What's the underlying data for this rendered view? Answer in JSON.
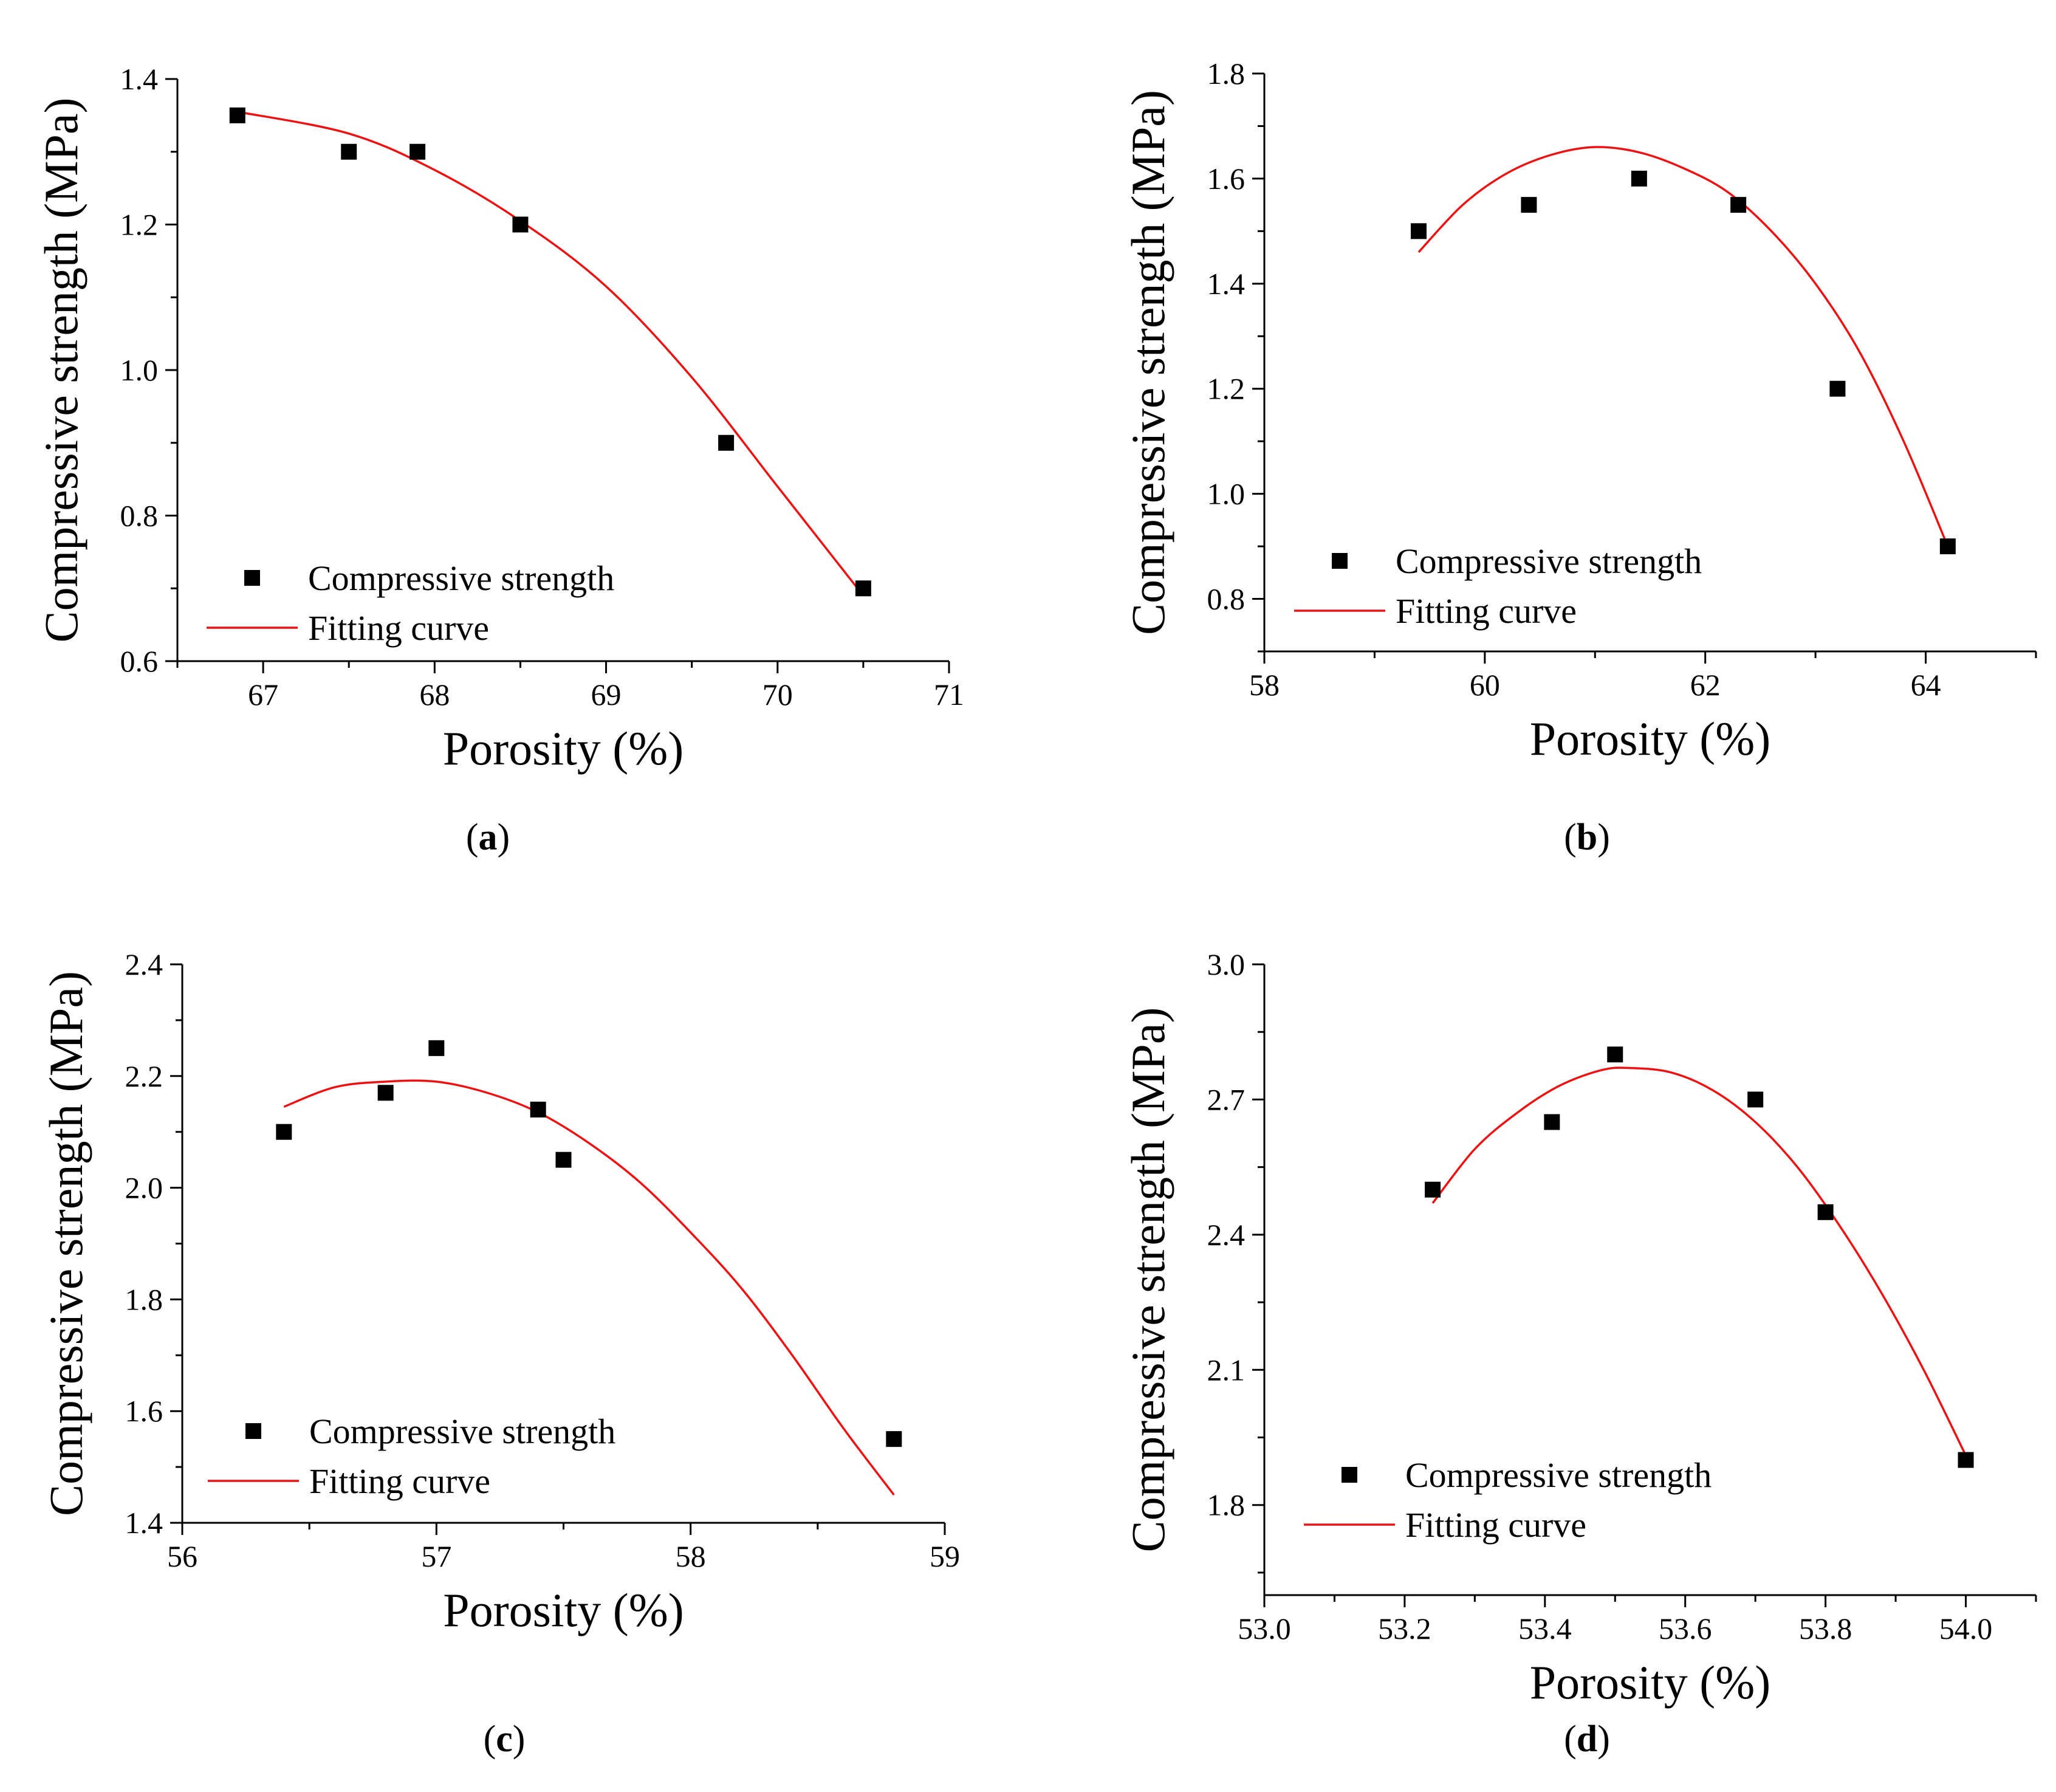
{
  "colors": {
    "points": "#000000",
    "fit": "#ee1111",
    "background": "#ffffff"
  },
  "chart_data": [
    {
      "panel": "a",
      "panel_label": "a",
      "type": "scatter",
      "xlabel": "Porosity (%)",
      "ylabel": "Compressive strength (MPa)",
      "xlim": [
        66.5,
        71
      ],
      "ylim": [
        0.6,
        1.4
      ],
      "xticks": [
        67,
        68,
        69,
        70,
        71
      ],
      "yticks": [
        0.6,
        0.8,
        1.0,
        1.2,
        1.4
      ],
      "x_tick_labels": [
        "67",
        "68",
        "69",
        "70",
        "71"
      ],
      "y_tick_labels": [
        "0.6",
        "0.8",
        "1.0",
        "1.2",
        "1.4"
      ],
      "legend": {
        "position": "bottom-left",
        "points_label": "Compressive strength",
        "fit_label": "Fitting curve"
      },
      "series": [
        {
          "name": "Compressive strength",
          "kind": "points",
          "x": [
            66.85,
            67.5,
            67.9,
            68.5,
            69.7,
            70.5
          ],
          "y": [
            1.35,
            1.3,
            1.3,
            1.2,
            0.9,
            0.7
          ]
        },
        {
          "name": "Fitting curve",
          "kind": "line",
          "x": [
            66.85,
            67.5,
            68.0,
            68.5,
            69.0,
            69.5,
            70.0,
            70.5
          ],
          "y": [
            1.355,
            1.325,
            1.275,
            1.205,
            1.115,
            0.99,
            0.84,
            0.69
          ]
        }
      ]
    },
    {
      "panel": "b",
      "panel_label": "b",
      "type": "scatter",
      "xlabel": "Porosity (%)",
      "ylabel": "Compressive strength (MPa)",
      "xlim": [
        58,
        65
      ],
      "ylim": [
        0.7,
        1.8
      ],
      "xticks": [
        58,
        60,
        62,
        64
      ],
      "yticks": [
        0.8,
        1.0,
        1.2,
        1.4,
        1.6,
        1.8
      ],
      "x_tick_labels": [
        "58",
        "60",
        "62",
        "64"
      ],
      "y_tick_labels": [
        "0.8",
        "1.0",
        "1.2",
        "1.4",
        "1.6",
        "1.8"
      ],
      "legend": {
        "position": "bottom-left",
        "points_label": "Compressive strength",
        "fit_label": "Fitting curve"
      },
      "series": [
        {
          "name": "Compressive strength",
          "kind": "points",
          "x": [
            59.4,
            60.4,
            61.4,
            62.3,
            63.2,
            64.2
          ],
          "y": [
            1.5,
            1.55,
            1.6,
            1.55,
            1.2,
            0.9
          ]
        },
        {
          "name": "Fitting curve",
          "kind": "line",
          "x": [
            59.4,
            59.8,
            60.2,
            60.6,
            61.0,
            61.4,
            61.8,
            62.2,
            62.6,
            63.0,
            63.4,
            63.8,
            64.2
          ],
          "y": [
            1.46,
            1.55,
            1.61,
            1.645,
            1.66,
            1.65,
            1.62,
            1.575,
            1.5,
            1.4,
            1.27,
            1.1,
            0.9
          ]
        }
      ]
    },
    {
      "panel": "c",
      "panel_label": "c",
      "type": "scatter",
      "xlabel": "Porosity (%)",
      "ylabel": "Compressive strength (MPa)",
      "xlim": [
        56,
        59
      ],
      "ylim": [
        1.4,
        2.4
      ],
      "xticks": [
        56,
        57,
        58,
        59
      ],
      "yticks": [
        1.4,
        1.6,
        1.8,
        2.0,
        2.2,
        2.4
      ],
      "x_tick_labels": [
        "56",
        "57",
        "58",
        "59"
      ],
      "y_tick_labels": [
        "1.4",
        "1.6",
        "1.8",
        "2.0",
        "2.2",
        "2.4"
      ],
      "legend": {
        "position": "bottom-left",
        "points_label": "Compressive strength",
        "fit_label": "Fitting curve"
      },
      "series": [
        {
          "name": "Compressive strength",
          "kind": "points",
          "x": [
            56.4,
            56.8,
            57.0,
            57.4,
            57.5,
            58.8
          ],
          "y": [
            2.1,
            2.17,
            2.25,
            2.14,
            2.05,
            1.55
          ]
        },
        {
          "name": "Fitting curve",
          "kind": "line",
          "x": [
            56.4,
            56.6,
            56.8,
            57.0,
            57.2,
            57.4,
            57.6,
            57.8,
            58.0,
            58.2,
            58.4,
            58.6,
            58.8
          ],
          "y": [
            2.145,
            2.18,
            2.19,
            2.19,
            2.17,
            2.135,
            2.08,
            2.01,
            1.92,
            1.82,
            1.7,
            1.57,
            1.45
          ]
        }
      ]
    },
    {
      "panel": "d",
      "panel_label": "d",
      "type": "scatter",
      "xlabel": "Porosity (%)",
      "ylabel": "Compressive strength (MPa)",
      "xlim": [
        53.0,
        54.1
      ],
      "ylim": [
        1.6,
        3.0
      ],
      "xticks": [
        53.0,
        53.2,
        53.4,
        53.6,
        53.8,
        54.0
      ],
      "yticks": [
        1.8,
        2.1,
        2.4,
        2.7,
        3.0
      ],
      "x_tick_labels": [
        "53.0",
        "53.2",
        "53.4",
        "53.6",
        "53.8",
        "54.0"
      ],
      "y_tick_labels": [
        "1.8",
        "2.1",
        "2.4",
        "2.7",
        "3.0"
      ],
      "legend": {
        "position": "bottom-left",
        "points_label": "Compressive strength",
        "fit_label": "Fitting curve"
      },
      "series": [
        {
          "name": "Compressive strength",
          "kind": "points",
          "x": [
            53.24,
            53.41,
            53.5,
            53.7,
            53.8,
            54.0
          ],
          "y": [
            2.5,
            2.65,
            2.8,
            2.7,
            2.45,
            1.9
          ]
        },
        {
          "name": "Fitting curve",
          "kind": "line",
          "x": [
            53.24,
            53.3,
            53.36,
            53.42,
            53.48,
            53.52,
            53.58,
            53.64,
            53.7,
            53.76,
            53.82,
            53.88,
            53.94,
            54.0
          ],
          "y": [
            2.47,
            2.59,
            2.67,
            2.73,
            2.765,
            2.77,
            2.76,
            2.72,
            2.65,
            2.55,
            2.42,
            2.27,
            2.1,
            1.91
          ]
        }
      ]
    }
  ]
}
